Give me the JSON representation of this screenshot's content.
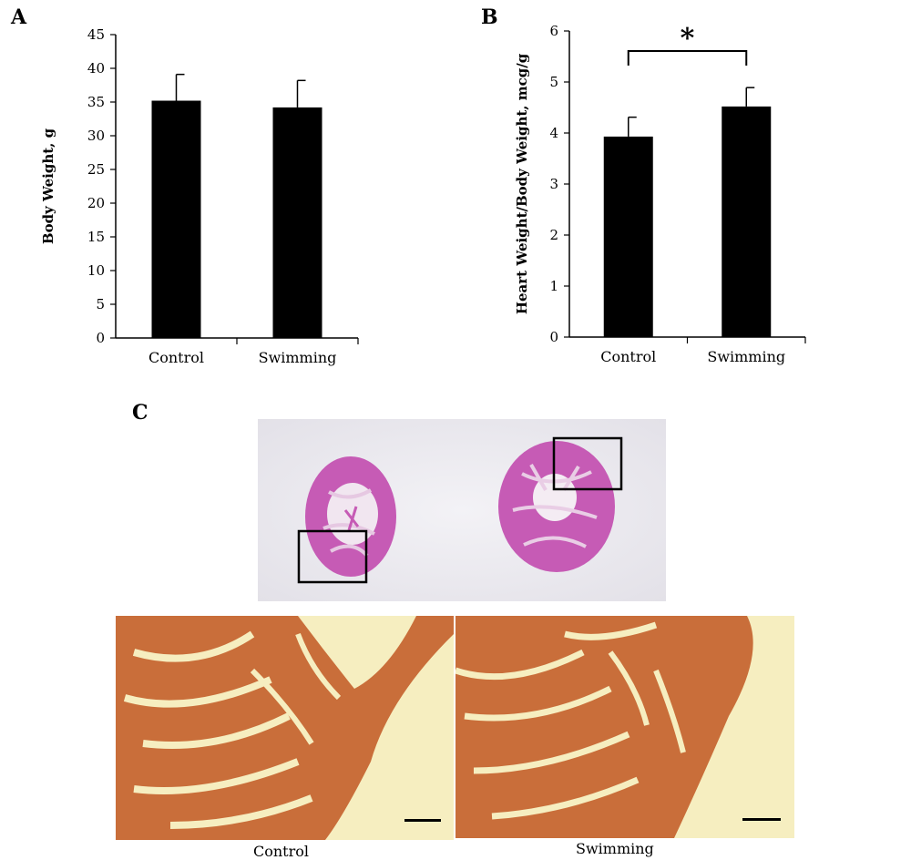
{
  "panel_labels": {
    "a": "A",
    "b": "B",
    "c": "C"
  },
  "chart_data": [
    {
      "type": "bar",
      "categories": [
        "Control",
        "Swimming"
      ],
      "series": [
        {
          "values": [
            35.2,
            34.2
          ],
          "error": [
            3.9,
            4.0
          ]
        }
      ],
      "xlabel": "",
      "ylabel": "Body Weight, g",
      "ylim": [
        0,
        45
      ],
      "yticks": [
        "0",
        "5",
        "10",
        "15",
        "20",
        "25",
        "30",
        "35",
        "40",
        "45"
      ],
      "grid": false,
      "bar_color": "#000000"
    },
    {
      "type": "bar",
      "categories": [
        "Control",
        "Swimming"
      ],
      "series": [
        {
          "values": [
            3.93,
            4.52
          ],
          "error": [
            0.38,
            0.37
          ]
        }
      ],
      "xlabel": "",
      "ylabel": "Heart Weight/Body Weight, mcg/g",
      "ylim": [
        0,
        6
      ],
      "yticks": [
        "0",
        "1",
        "2",
        "3",
        "4",
        "5",
        "6"
      ],
      "grid": false,
      "bar_color": "#000000",
      "significance": "*"
    }
  ],
  "histology": {
    "gross_stain_color": "#c65bb5",
    "tissue_color": "#c96e3a",
    "background_color": "#f6eec0",
    "captions": {
      "control": "Control",
      "swimming": "Swimming"
    }
  }
}
